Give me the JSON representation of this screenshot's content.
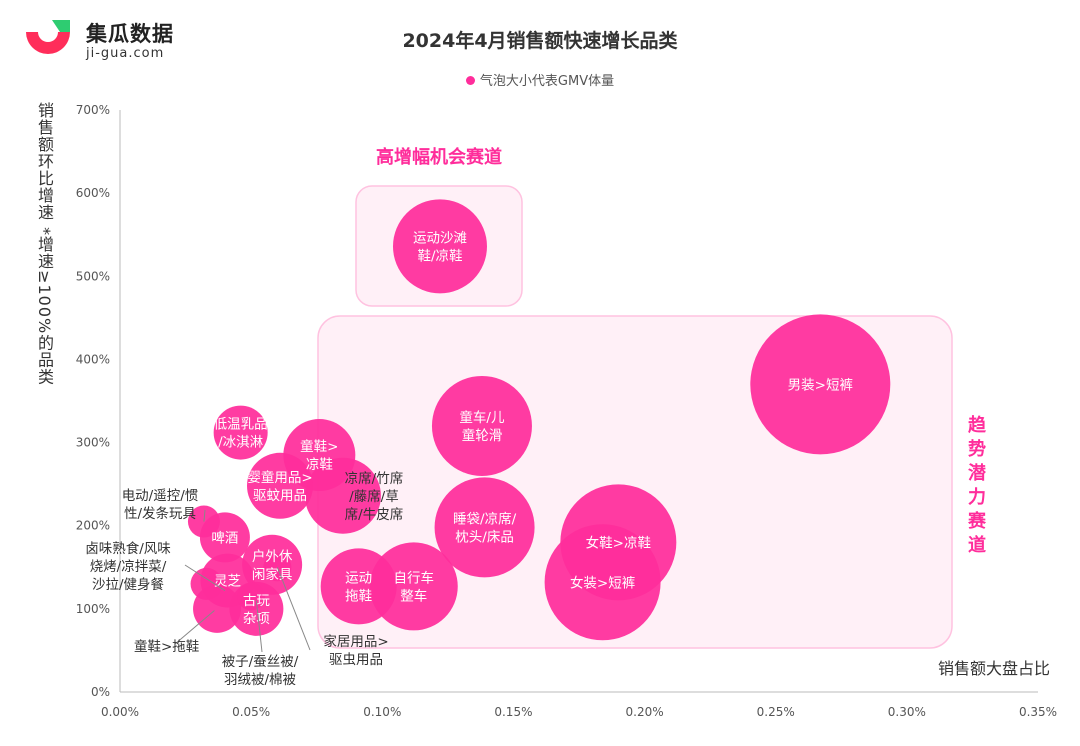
{
  "brand": {
    "name": "集瓜数据",
    "site": "ji-gua.com"
  },
  "title": "2024年4月销售额快速增长品类",
  "legend": "气泡大小代表GMV体量",
  "colors": {
    "bubble": "#ff2d9b",
    "zone_fill": "#fff0f7",
    "zone_stroke": "#ffc2e0",
    "logo_red": "#ff2d5a",
    "logo_green": "#2ecc71"
  },
  "axis": {
    "ylabel": "销售额环比增速 *增速≥100%的品类",
    "xlabel": "销售额大盘占比"
  },
  "zones": {
    "high_growth": "高增幅机会赛道",
    "trend_potential": "趋势潜力赛道"
  },
  "chart_data": {
    "type": "scatter",
    "title": "2024年4月销售额快速增长品类",
    "xlabel": "销售额大盘占比",
    "ylabel": "销售额环比增速 *增速≥100%的品类",
    "xlim": [
      0,
      0.35
    ],
    "ylim": [
      0,
      700
    ],
    "x_unit": "%",
    "y_unit": "%",
    "xticks": [
      "0.00%",
      "0.05%",
      "0.10%",
      "0.15%",
      "0.20%",
      "0.25%",
      "0.30%",
      "0.35%"
    ],
    "yticks": [
      "0%",
      "100%",
      "200%",
      "300%",
      "400%",
      "500%",
      "600%",
      "700%"
    ],
    "grid": false,
    "legend_position": "top-center",
    "points": [
      {
        "label": [
          "运动沙滩",
          "鞋/凉鞋"
        ],
        "x": 0.122,
        "y": 536,
        "size": 47,
        "label_pos": "inside"
      },
      {
        "label": [
          "男装>短裤"
        ],
        "x": 0.267,
        "y": 370,
        "size": 70,
        "label_pos": "inside"
      },
      {
        "label": [
          "童车/儿",
          "童轮滑"
        ],
        "x": 0.138,
        "y": 320,
        "size": 50,
        "label_pos": "inside"
      },
      {
        "label": [
          "睡袋/凉席/",
          "枕头/床品"
        ],
        "x": 0.139,
        "y": 198,
        "size": 50,
        "label_pos": "inside"
      },
      {
        "label": [
          "女鞋>凉鞋"
        ],
        "x": 0.19,
        "y": 180,
        "size": 58,
        "label_pos": "inside"
      },
      {
        "label": [
          "女装>短裤"
        ],
        "x": 0.184,
        "y": 132,
        "size": 58,
        "label_pos": "inside"
      },
      {
        "label": [
          "自行车",
          "整车"
        ],
        "x": 0.112,
        "y": 127,
        "size": 44,
        "label_pos": "inside"
      },
      {
        "label": [
          "运动",
          "拖鞋"
        ],
        "x": 0.091,
        "y": 127,
        "size": 38,
        "label_pos": "inside"
      },
      {
        "label": [
          "凉席/竹席",
          "/藤席/草",
          "席/牛皮席"
        ],
        "x": 0.085,
        "y": 236,
        "size": 38,
        "label_pos": "right"
      },
      {
        "label": [
          "童鞋>",
          "凉鞋"
        ],
        "x": 0.076,
        "y": 285,
        "size": 36,
        "label_pos": "inside"
      },
      {
        "label": [
          "婴童用品>",
          "驱蚊用品"
        ],
        "x": 0.061,
        "y": 248,
        "size": 33,
        "label_pos": "inside"
      },
      {
        "label": [
          "低温乳品",
          "/冰淇淋"
        ],
        "x": 0.046,
        "y": 312,
        "size": 27,
        "label_pos": "inside"
      },
      {
        "label": [
          "户外休",
          "闲家具"
        ],
        "x": 0.058,
        "y": 153,
        "size": 30,
        "label_pos": "inside"
      },
      {
        "label": [
          "啤酒"
        ],
        "x": 0.04,
        "y": 186,
        "size": 25,
        "label_pos": "inside"
      },
      {
        "label": [
          "灵芝"
        ],
        "x": 0.041,
        "y": 134,
        "size": 27,
        "label_pos": "inside"
      },
      {
        "label": [
          "古玩",
          "杂项"
        ],
        "x": 0.052,
        "y": 100,
        "size": 27,
        "label_pos": "inside"
      },
      {
        "label": [
          "童鞋>拖鞋"
        ],
        "x": 0.037,
        "y": 100,
        "size": 24,
        "label_pos": "outside"
      },
      {
        "label": [
          "电动/遥控/惯",
          "性/发条玩具"
        ],
        "x": 0.032,
        "y": 205,
        "size": 16,
        "label_pos": "outside"
      },
      {
        "label": [
          "卤味熟食/风味",
          "烧烤/凉拌菜/",
          "沙拉/健身餐"
        ],
        "x": 0.033,
        "y": 130,
        "size": 16,
        "label_pos": "outside"
      },
      {
        "label": [
          "家居用品>",
          "驱虫用品"
        ],
        "x": 0.06,
        "y": 150,
        "size": 14,
        "label_pos": "outside"
      },
      {
        "label": [
          "被子/蚕丝被/",
          "羽绒被/棉被"
        ],
        "x": 0.05,
        "y": 115,
        "size": 14,
        "label_pos": "outside"
      }
    ]
  }
}
